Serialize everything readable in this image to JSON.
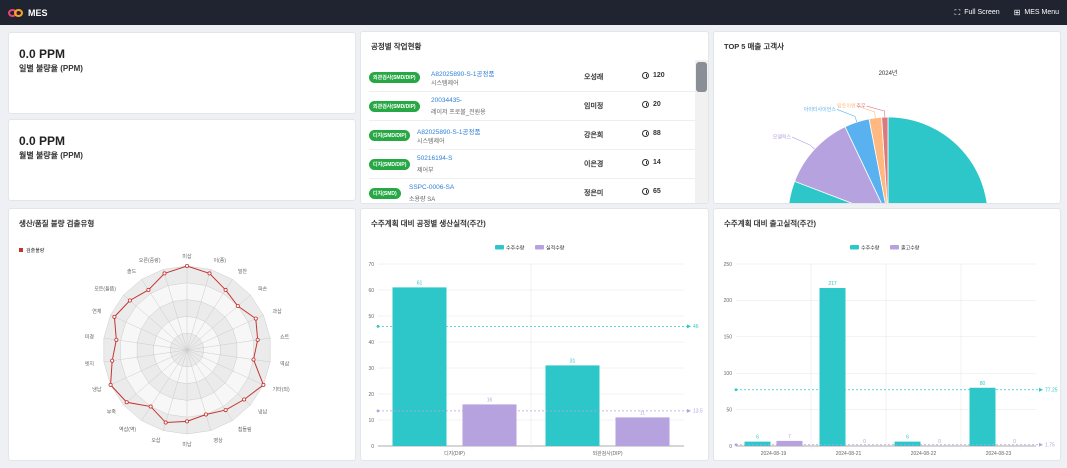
{
  "app": {
    "title": "MES",
    "full_screen": "Full Screen",
    "menu": "MES Menu"
  },
  "ppm": [
    {
      "value": "0.0 PPM",
      "label": "일별 불량율 (PPM)"
    },
    {
      "value": "0.0 PPM",
      "label": "월별 불량율 (PPM)"
    }
  ],
  "work_status": {
    "title": "공정별 작업현황",
    "rows": [
      {
        "badge": "외관검사(SMD/DIP)",
        "code": "A82025890-S-1공정품",
        "name": "시스템제어",
        "person": "오성래",
        "count": "120"
      },
      {
        "badge": "외관검사(SMD/DIP)",
        "code": "20034435-",
        "name": "레이저 프로볼_전원용",
        "person": "임미정",
        "count": "20"
      },
      {
        "badge": "디지(SMD/DIP)",
        "code": "A82025890-S-1공정품",
        "name": "시스템제어",
        "person": "강은희",
        "count": "88"
      },
      {
        "badge": "디지(SMD/DIP)",
        "code": "50216194-S",
        "name": "제어부",
        "person": "이은경",
        "count": "14"
      },
      {
        "badge": "디지(SMD)",
        "code": "SSPC-0006-SA",
        "name": "소용량 SA",
        "person": "정은미",
        "count": "65"
      }
    ]
  },
  "top5": {
    "title": "TOP 5 매출 고객사",
    "chart_data": {
      "type": "pie",
      "title": "2024년",
      "slices": [
        {
          "name": "",
          "value": 80,
          "color": "#2ec7c9"
        },
        {
          "name": "모델릭스",
          "value": 12,
          "color": "#b6a2de"
        },
        {
          "name": "아이티사이언스",
          "value": 4,
          "color": "#5ab1ef"
        },
        {
          "name": "탑토이엔",
          "value": 2,
          "color": "#ffb980"
        },
        {
          "name": "주우",
          "value": 1,
          "color": "#d87a80"
        }
      ]
    }
  },
  "radar": {
    "title": "생산/품질 불량 검출유형",
    "chart_data": {
      "type": "radar",
      "legend": "검출불량",
      "color": "#c23531",
      "axes": [
        "미삽",
        "이(종)",
        "밀찬",
        "파손",
        "과삽",
        "쇼트",
        "역삽",
        "기타(외)",
        "냉납",
        "칩들림",
        "영상",
        "미납",
        "오삽",
        "역삽(역)",
        "부족",
        "냉납",
        "엣지",
        "미경",
        "연체",
        "모든(들뜸)",
        "솔드",
        "오른(중랑)"
      ],
      "values": [
        1,
        0.95,
        0.85,
        0.8,
        0.9,
        0.85,
        0.8,
        1,
        0.9,
        0.85,
        0.8,
        0.85,
        0.9,
        0.8,
        0.95,
        1,
        0.9,
        0.85,
        0.95,
        0.9,
        0.85,
        0.95
      ]
    }
  },
  "bar1": {
    "title": "수주계획 대비 공정별 생산실적(주간)",
    "chart_data": {
      "type": "bar",
      "categories": [
        "디지(DIP)",
        "외관검사(DIP)"
      ],
      "series": [
        {
          "name": "수주수량",
          "values": [
            61,
            31
          ],
          "color": "#2ec7c9"
        },
        {
          "name": "실적수량",
          "values": [
            16,
            11
          ],
          "color": "#b6a2de"
        }
      ],
      "ylim": [
        0,
        70
      ],
      "yticks": [
        0,
        10,
        20,
        30,
        40,
        50,
        60,
        70
      ],
      "mark_lines": [
        {
          "value": 46,
          "label": "46",
          "color": "#2ec7c9"
        },
        {
          "value": 13.5,
          "label": "13.5",
          "color": "#b6a2de"
        }
      ]
    }
  },
  "bar2": {
    "title": "수주계획 대비 출고실적(주간)",
    "chart_data": {
      "type": "bar",
      "categories": [
        "2024-08-19",
        "2024-08-21",
        "2024-08-22",
        "2024-08-23"
      ],
      "series": [
        {
          "name": "수주수량",
          "values": [
            6,
            217,
            6,
            80
          ],
          "color": "#2ec7c9"
        },
        {
          "name": "출고수량",
          "values": [
            7,
            0,
            0,
            0
          ],
          "color": "#b6a2de"
        }
      ],
      "ylim": [
        0,
        250
      ],
      "yticks": [
        0,
        50,
        100,
        150,
        200,
        250
      ],
      "mark_lines": [
        {
          "value": 77.25,
          "label": "77.25",
          "color": "#2ec7c9"
        },
        {
          "value": 1.75,
          "label": "1.75",
          "color": "#b6a2de"
        }
      ]
    }
  }
}
